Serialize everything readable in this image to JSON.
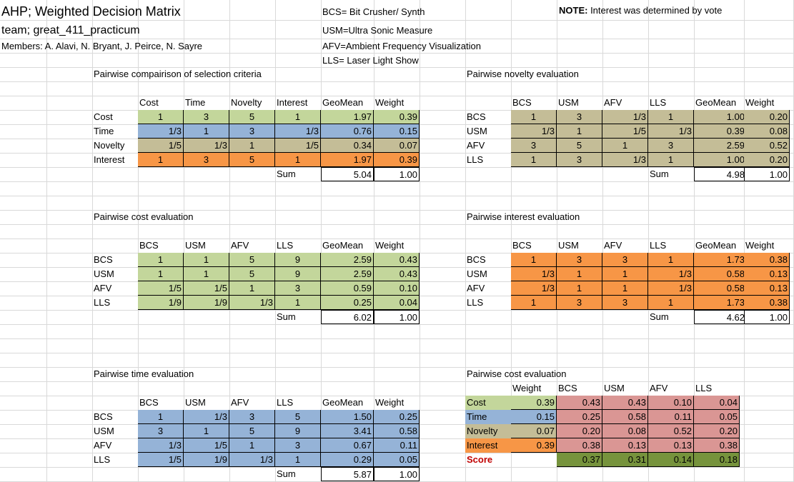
{
  "header": {
    "title": "AHP; Weighted Decision Matrix",
    "team": "team; great_411_practicum",
    "members": "Members: A. Alavi, N. Bryant, J. Peirce, N. Sayre",
    "legend": [
      "BCS= Bit Crusher/ Synth",
      "USM=Ultra Sonic Measure",
      "AFV=Ambient Frequency Visualization",
      "LLS= Laser Light Show"
    ],
    "note_label": "NOTE:",
    "note_text": " Interest was determined by vote"
  },
  "colors": {
    "cost": "#c3d69b",
    "time": "#95b3d7",
    "novelty": "#c4bd97",
    "interest": "#f79646",
    "matrix": "#da9694",
    "score": "#76933c"
  },
  "tables": {
    "criteria": {
      "title": "Pairwise compairison of selection criteria",
      "headers": [
        "Cost",
        "Time",
        "Novelty",
        "Interest",
        "GeoMean",
        "Weight"
      ],
      "rows": [
        {
          "label": "Cost",
          "cells": [
            "1",
            "3",
            "5",
            "1"
          ],
          "geo": "1.97",
          "w": "0.39",
          "color": "green"
        },
        {
          "label": "Time",
          "cells": [
            "1/3",
            "1",
            "3",
            "1/3"
          ],
          "geo": "0.76",
          "w": "0.15",
          "color": "blue"
        },
        {
          "label": "Novelty",
          "cells": [
            "1/5",
            "1/3",
            "1",
            "1/5"
          ],
          "geo": "0.34",
          "w": "0.07",
          "color": "tan"
        },
        {
          "label": "Interest",
          "cells": [
            "1",
            "3",
            "5",
            "1"
          ],
          "geo": "1.97",
          "w": "0.39",
          "color": "orange"
        }
      ],
      "sum_label": "Sum",
      "sum_geo": "5.04",
      "sum_w": "1.00"
    },
    "novelty": {
      "title": "Pairwise novelty evaluation",
      "headers": [
        "BCS",
        "USM",
        "AFV",
        "LLS",
        "GeoMean",
        "Weight"
      ],
      "rows": [
        {
          "label": "BCS",
          "cells": [
            "1",
            "3",
            "1/3",
            "1"
          ],
          "geo": "1.00",
          "w": "0.20",
          "color": "tan"
        },
        {
          "label": "USM",
          "cells": [
            "1/3",
            "1",
            "1/5",
            "1/3"
          ],
          "geo": "0.39",
          "w": "0.08",
          "color": "tan"
        },
        {
          "label": "AFV",
          "cells": [
            "3",
            "5",
            "1",
            "3"
          ],
          "geo": "2.59",
          "w": "0.52",
          "color": "tan"
        },
        {
          "label": "LLS",
          "cells": [
            "1",
            "3",
            "1/3",
            "1"
          ],
          "geo": "1.00",
          "w": "0.20",
          "color": "tan"
        }
      ],
      "sum_label": "Sum",
      "sum_geo": "4.98",
      "sum_w": "1.00"
    },
    "cost": {
      "title": "Pairwise cost evaluation",
      "headers": [
        "BCS",
        "USM",
        "AFV",
        "LLS",
        "GeoMean",
        "Weight"
      ],
      "rows": [
        {
          "label": "BCS",
          "cells": [
            "1",
            "1",
            "5",
            "9"
          ],
          "geo": "2.59",
          "w": "0.43",
          "color": "green"
        },
        {
          "label": "USM",
          "cells": [
            "1",
            "1",
            "5",
            "9"
          ],
          "geo": "2.59",
          "w": "0.43",
          "color": "green"
        },
        {
          "label": "AFV",
          "cells": [
            "1/5",
            "1/5",
            "1",
            "3"
          ],
          "geo": "0.59",
          "w": "0.10",
          "color": "green"
        },
        {
          "label": "LLS",
          "cells": [
            "1/9",
            "1/9",
            "1/3",
            "1"
          ],
          "geo": "0.25",
          "w": "0.04",
          "color": "green"
        }
      ],
      "sum_label": "Sum",
      "sum_geo": "6.02",
      "sum_w": "1.00"
    },
    "interest": {
      "title": "Pairwise interest evaluation",
      "headers": [
        "BCS",
        "USM",
        "AFV",
        "LLS",
        "GeoMean",
        "Weight"
      ],
      "rows": [
        {
          "label": "BCS",
          "cells": [
            "1",
            "3",
            "3",
            "1"
          ],
          "geo": "1.73",
          "w": "0.38",
          "color": "orange"
        },
        {
          "label": "USM",
          "cells": [
            "1/3",
            "1",
            "1",
            "1/3"
          ],
          "geo": "0.58",
          "w": "0.13",
          "color": "orange"
        },
        {
          "label": "AFV",
          "cells": [
            "1/3",
            "1",
            "1",
            "1/3"
          ],
          "geo": "0.58",
          "w": "0.13",
          "color": "orange"
        },
        {
          "label": "LLS",
          "cells": [
            "1",
            "3",
            "3",
            "1"
          ],
          "geo": "1.73",
          "w": "0.38",
          "color": "orange"
        }
      ],
      "sum_label": "Sum",
      "sum_geo": "4.62",
      "sum_w": "1.00"
    },
    "time": {
      "title": "Pairwise time evaluation",
      "headers": [
        "BCS",
        "USM",
        "AFV",
        "LLS",
        "GeoMean",
        "Weight"
      ],
      "rows": [
        {
          "label": "BCS",
          "cells": [
            "1",
            "1/3",
            "3",
            "5"
          ],
          "geo": "1.50",
          "w": "0.25",
          "color": "blue"
        },
        {
          "label": "USM",
          "cells": [
            "3",
            "1",
            "5",
            "9"
          ],
          "geo": "3.41",
          "w": "0.58",
          "color": "blue"
        },
        {
          "label": "AFV",
          "cells": [
            "1/3",
            "1/5",
            "1",
            "3"
          ],
          "geo": "0.67",
          "w": "0.11",
          "color": "blue"
        },
        {
          "label": "LLS",
          "cells": [
            "1/5",
            "1/9",
            "1/3",
            "1"
          ],
          "geo": "0.29",
          "w": "0.05",
          "color": "blue"
        }
      ],
      "sum_label": "Sum",
      "sum_geo": "5.87",
      "sum_w": "1.00"
    },
    "final": {
      "title": "Pairwise cost evaluation",
      "headers": [
        "Weight",
        "BCS",
        "USM",
        "AFV",
        "LLS"
      ],
      "rows": [
        {
          "label": "Cost",
          "w": "0.39",
          "cells": [
            "0.43",
            "0.43",
            "0.10",
            "0.04"
          ],
          "color": "green"
        },
        {
          "label": "Time",
          "w": "0.15",
          "cells": [
            "0.25",
            "0.58",
            "0.11",
            "0.05"
          ],
          "color": "blue"
        },
        {
          "label": "Novelty",
          "w": "0.07",
          "cells": [
            "0.20",
            "0.08",
            "0.52",
            "0.20"
          ],
          "color": "tan"
        },
        {
          "label": "Interest",
          "w": "0.39",
          "cells": [
            "0.38",
            "0.13",
            "0.13",
            "0.38"
          ],
          "color": "orange"
        }
      ],
      "score_label": "Score",
      "scores": [
        "0.37",
        "0.31",
        "0.14",
        "0.18"
      ]
    }
  }
}
